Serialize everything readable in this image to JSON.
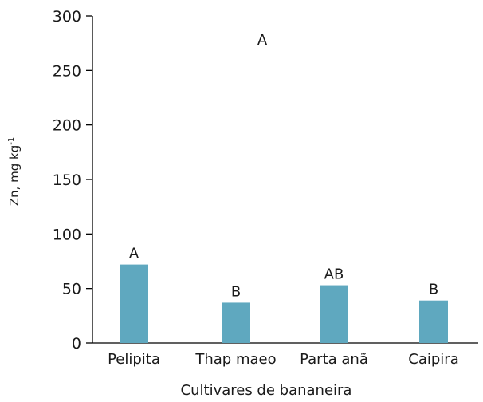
{
  "chart_data": {
    "type": "bar",
    "title": "",
    "xlabel": "Cultivares de bananeira",
    "ylabel": "Zn, mg kg",
    "ylabel_superscript": "-1",
    "ylim": [
      0,
      300
    ],
    "yticks": [
      0,
      50,
      100,
      150,
      200,
      250,
      300
    ],
    "categories": [
      "Pelipita",
      "Thap maeo",
      "Parta anã",
      "Caipira"
    ],
    "values": [
      72,
      37,
      53,
      39
    ],
    "bar_labels": [
      "A",
      "B",
      "AB",
      "B"
    ],
    "annotation": "A",
    "bar_color": "#5fa8bf",
    "grid": false,
    "legend": "none"
  }
}
